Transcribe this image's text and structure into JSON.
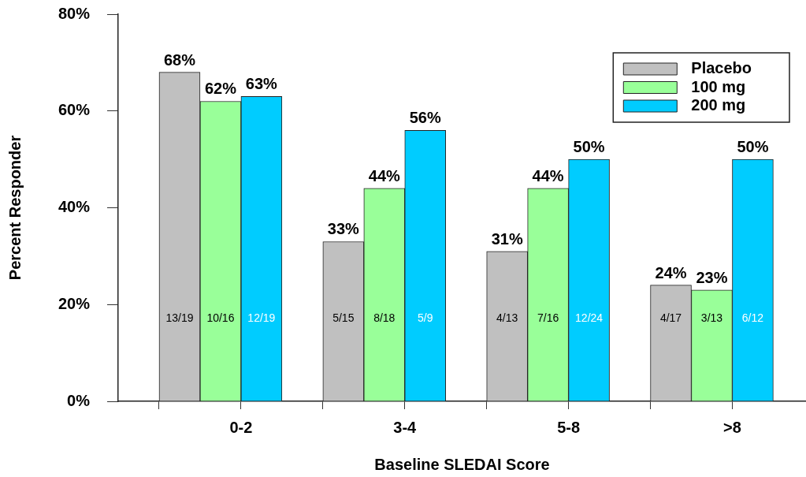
{
  "chart_data": {
    "type": "bar",
    "xlabel": "Baseline SLEDAI Score",
    "ylabel": "Percent Responder",
    "categories": [
      "0-2",
      "3-4",
      "5-8",
      ">8"
    ],
    "series": [
      {
        "name": "Placebo",
        "color": "#c0c0c0",
        "values": [
          68,
          33,
          31,
          24
        ],
        "value_labels": [
          "68%",
          "33%",
          "31%",
          "24%"
        ]
      },
      {
        "name": "100 mg",
        "color": "#99ff99",
        "values": [
          62,
          44,
          44,
          23
        ],
        "value_labels": [
          "62%",
          "44%",
          "44%",
          "23%"
        ]
      },
      {
        "name": "200 mg",
        "color": "#00ccff",
        "values": [
          63,
          56,
          50,
          50
        ],
        "value_labels": [
          "63%",
          "56%",
          "50%",
          "50%"
        ]
      }
    ],
    "ylim": [
      0,
      80
    ],
    "yticks": [
      {
        "value": 0,
        "label": "0%"
      },
      {
        "value": 20,
        "label": "20%"
      },
      {
        "value": 40,
        "label": "40%"
      },
      {
        "value": 60,
        "label": "60%"
      },
      {
        "value": 80,
        "label": "80%"
      }
    ],
    "legend": "top right",
    "annotations": [
      "13/19",
      "10/16",
      "12/19",
      "5/15",
      "8/18",
      "5/9",
      "4/13",
      "7/16",
      "12/24",
      "4/17",
      "3/13",
      "6/12"
    ]
  }
}
